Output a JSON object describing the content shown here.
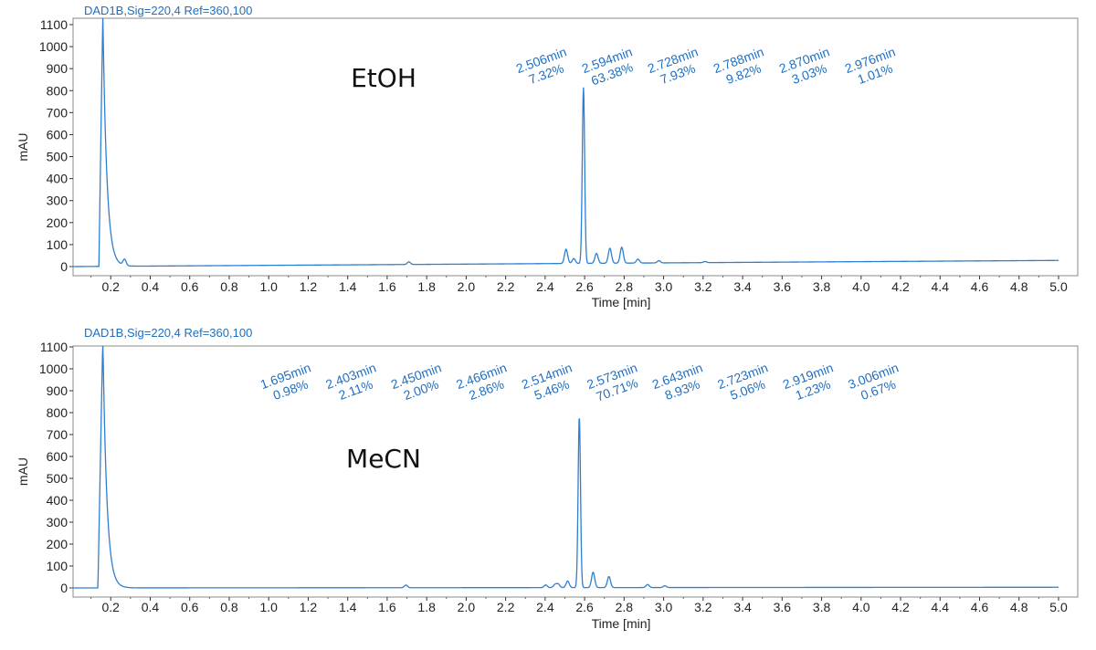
{
  "chart_data": [
    {
      "type": "line",
      "signal_label": "DAD1B,Sig=220,4  Ref=360,100",
      "solvent_label": "EtOH",
      "xlabel": "Time [min]",
      "ylabel": "mAU",
      "xlim": [
        0.0,
        5.0
      ],
      "ylim": [
        -20,
        1100
      ],
      "x_ticks": [
        "0.2",
        "0.4",
        "0.6",
        "0.8",
        "1.0",
        "1.2",
        "1.4",
        "1.6",
        "1.8",
        "2.0",
        "2.2",
        "2.4",
        "2.6",
        "2.8",
        "3.0",
        "3.2",
        "3.4",
        "3.6",
        "3.8",
        "4.0",
        "4.2",
        "4.4",
        "4.6",
        "4.8",
        "5.0"
      ],
      "y_ticks": [
        "0",
        "100",
        "200",
        "300",
        "400",
        "500",
        "600",
        "700",
        "800",
        "900",
        "1000",
        "1100"
      ],
      "line_color": "#2e7fd0",
      "label_color": "#1f6fc0",
      "solvent_peak": {
        "start": 0.14,
        "apex": 0.16,
        "height": 1150,
        "tail": 0.02
      },
      "peaks": [
        {
          "x": 2.506,
          "y": 65,
          "time_label": "2.506min",
          "area_label": "7.32%"
        },
        {
          "x": 2.594,
          "y": 800,
          "time_label": "2.594min",
          "area_label": "63.38%"
        },
        {
          "x": 2.728,
          "y": 68,
          "time_label": "2.728min",
          "area_label": "7.93%"
        },
        {
          "x": 2.788,
          "y": 72,
          "time_label": "2.788min",
          "area_label": "9.82%"
        },
        {
          "x": 2.87,
          "y": 18,
          "time_label": "2.870min",
          "area_label": "3.03%"
        },
        {
          "x": 2.976,
          "y": 10,
          "time_label": "2.976min",
          "area_label": "1.01%"
        }
      ],
      "minor_peaks": [
        {
          "x": 0.27,
          "y": 28
        },
        {
          "x": 1.71,
          "y": 12
        },
        {
          "x": 2.545,
          "y": 22
        },
        {
          "x": 2.66,
          "y": 45
        },
        {
          "x": 3.21,
          "y": 5
        }
      ],
      "baseline": {
        "start": 0.0,
        "end": 28
      }
    },
    {
      "type": "line",
      "signal_label": "DAD1B,Sig=220,4  Ref=360,100",
      "solvent_label": "MeCN",
      "xlabel": "Time [min]",
      "ylabel": "mAU",
      "xlim": [
        0.0,
        5.0
      ],
      "ylim": [
        -20,
        1100
      ],
      "x_ticks": [
        "0.2",
        "0.4",
        "0.6",
        "0.8",
        "1.0",
        "1.2",
        "1.4",
        "1.6",
        "1.8",
        "2.0",
        "2.2",
        "2.4",
        "2.6",
        "2.8",
        "3.0",
        "3.2",
        "3.4",
        "3.6",
        "3.8",
        "4.0",
        "4.2",
        "4.4",
        "4.6",
        "4.8",
        "5.0"
      ],
      "y_ticks": [
        "0",
        "100",
        "200",
        "300",
        "400",
        "500",
        "600",
        "700",
        "800",
        "900",
        "1000",
        "1100"
      ],
      "line_color": "#2e7fd0",
      "label_color": "#1f6fc0",
      "solvent_peak": {
        "start": 0.135,
        "apex": 0.16,
        "height": 1150,
        "tail": 0.02
      },
      "peaks": [
        {
          "x": 1.695,
          "y": 12,
          "time_label": "1.695min",
          "area_label": "0.98%"
        },
        {
          "x": 2.403,
          "y": 12,
          "time_label": "2.403min",
          "area_label": "2.11%"
        },
        {
          "x": 2.45,
          "y": 14,
          "time_label": "2.450min",
          "area_label": "2.00%"
        },
        {
          "x": 2.466,
          "y": 16,
          "time_label": "2.466min",
          "area_label": "2.86%"
        },
        {
          "x": 2.514,
          "y": 30,
          "time_label": "2.514min",
          "area_label": "5.46%"
        },
        {
          "x": 2.573,
          "y": 780,
          "time_label": "2.573min",
          "area_label": "70.71%"
        },
        {
          "x": 2.643,
          "y": 70,
          "time_label": "2.643min",
          "area_label": "8.93%"
        },
        {
          "x": 2.723,
          "y": 50,
          "time_label": "2.723min",
          "area_label": "5.06%"
        },
        {
          "x": 2.919,
          "y": 14,
          "time_label": "2.919min",
          "area_label": "1.23%"
        },
        {
          "x": 3.006,
          "y": 8,
          "time_label": "3.006min",
          "area_label": "0.67%"
        }
      ],
      "minor_peaks": [],
      "baseline": {
        "start": 0.0,
        "end": 3
      }
    }
  ]
}
